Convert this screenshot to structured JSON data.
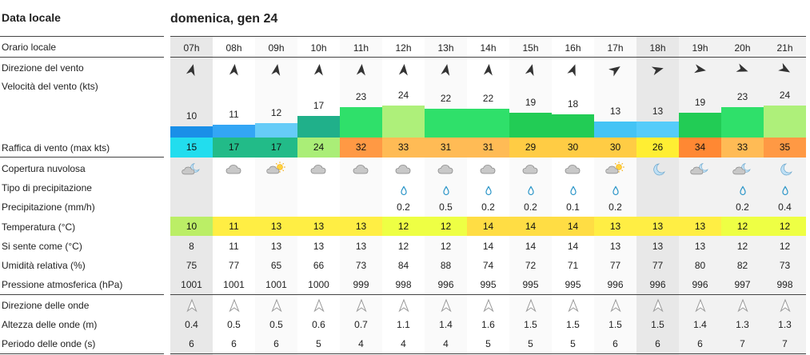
{
  "header": {
    "left_title": "Data locale",
    "date": "domenica, gen 24"
  },
  "labels": {
    "local_time": "Orario locale",
    "wind_dir": "Direzione del vento",
    "wind_speed": "Velocità del vento  (kts)",
    "gust": "Raffica di vento  (max kts)",
    "cloud": "Copertura nuvolosa",
    "precip_type": "Tipo di precipitazione",
    "precip": "Precipitazione  (mm/h)",
    "temp": "Temperatura  (°C)",
    "feels": "Si sente come  (°C)",
    "humidity": "Umidità relativa  (%)",
    "pressure": "Pressione atmosferica  (hPa)",
    "wave_dir": "Direzione delle onde",
    "wave_height": "Altezza delle onde  (m)",
    "wave_period": "Periodo delle onde  (s)"
  },
  "hours": [
    "07h",
    "08h",
    "09h",
    "10h",
    "11h",
    "12h",
    "13h",
    "14h",
    "15h",
    "16h",
    "17h",
    "18h",
    "19h",
    "20h",
    "21h"
  ],
  "night_hours": [
    "07h",
    "18h",
    "19h",
    "20h",
    "21h"
  ],
  "wind_dir_deg": [
    15,
    5,
    10,
    5,
    5,
    5,
    10,
    5,
    15,
    20,
    55,
    75,
    100,
    110,
    120
  ],
  "wind_speed": [
    "10",
    "11",
    "12",
    "17",
    "23",
    "24",
    "22",
    "22",
    "19",
    "18",
    "13",
    "13",
    "19",
    "23",
    "24"
  ],
  "wind_speed_values": [
    10,
    11,
    12,
    17,
    23,
    24,
    22,
    22,
    19,
    18,
    13,
    13,
    19,
    23,
    24
  ],
  "wind_colors": [
    "#1a8fe8",
    "#33a6f5",
    "#66ccf8",
    "#20b08a",
    "#2fe06a",
    "#aef07a",
    "#2fe06a",
    "#2fe06a",
    "#22cc55",
    "#22cc55",
    "#44c4f5",
    "#55ccfa",
    "#22cc55",
    "#2fe06a",
    "#aef07a"
  ],
  "gust": [
    "15",
    "17",
    "17",
    "24",
    "32",
    "33",
    "31",
    "31",
    "29",
    "30",
    "30",
    "26",
    "34",
    "33",
    "35"
  ],
  "gust_colors": [
    "#22ddee",
    "#22bb88",
    "#22bb88",
    "#aaee77",
    "#ff9944",
    "#ffbb55",
    "#ffbb55",
    "#ffbb55",
    "#ffcc44",
    "#ffcc44",
    "#ffcc44",
    "#ffee33",
    "#ff8833",
    "#ffbb55",
    "#ff9944"
  ],
  "cloud_icons": [
    "moon-cloud",
    "cloud",
    "sun-cloud",
    "cloud",
    "cloud",
    "cloud",
    "cloud",
    "cloud",
    "cloud",
    "cloud",
    "sun-cloud",
    "moon",
    "moon-cloud",
    "moon-cloud",
    "moon"
  ],
  "precip_type": [
    "",
    "",
    "",
    "",
    "",
    "rain",
    "rain",
    "rain",
    "rain",
    "rain",
    "rain",
    "",
    "",
    "rain",
    "rain"
  ],
  "precip": [
    "",
    "",
    "",
    "",
    "",
    "0.2",
    "0.5",
    "0.2",
    "0.2",
    "0.1",
    "0.2",
    "",
    "",
    "0.2",
    "0.4"
  ],
  "temp": [
    "10",
    "11",
    "13",
    "13",
    "13",
    "12",
    "12",
    "14",
    "14",
    "14",
    "13",
    "13",
    "13",
    "12",
    "12"
  ],
  "temp_colors": [
    "#bbee66",
    "#ffee44",
    "#ffee44",
    "#ffee44",
    "#ffee44",
    "#eeff44",
    "#eeff44",
    "#ffdd44",
    "#ffdd44",
    "#ffdd44",
    "#ffee44",
    "#ffee44",
    "#ffee44",
    "#eeff44",
    "#eeff44"
  ],
  "feels": [
    "8",
    "11",
    "13",
    "13",
    "13",
    "12",
    "12",
    "14",
    "14",
    "14",
    "13",
    "13",
    "13",
    "12",
    "12"
  ],
  "humidity": [
    "75",
    "77",
    "65",
    "66",
    "73",
    "84",
    "88",
    "74",
    "72",
    "71",
    "77",
    "77",
    "80",
    "82",
    "73"
  ],
  "pressure": [
    "1001",
    "1001",
    "1001",
    "1000",
    "999",
    "998",
    "996",
    "995",
    "995",
    "995",
    "996",
    "996",
    "996",
    "997",
    "998"
  ],
  "wave_dir_deg": [
    0,
    0,
    0,
    0,
    0,
    0,
    0,
    0,
    0,
    0,
    0,
    0,
    0,
    0,
    0
  ],
  "wave_height": [
    "0.4",
    "0.5",
    "0.5",
    "0.6",
    "0.7",
    "1.1",
    "1.4",
    "1.6",
    "1.5",
    "1.5",
    "1.5",
    "1.5",
    "1.4",
    "1.3",
    "1.3"
  ],
  "wave_period": [
    "6",
    "6",
    "6",
    "5",
    "4",
    "4",
    "4",
    "5",
    "5",
    "5",
    "6",
    "6",
    "6",
    "7",
    "7"
  ]
}
